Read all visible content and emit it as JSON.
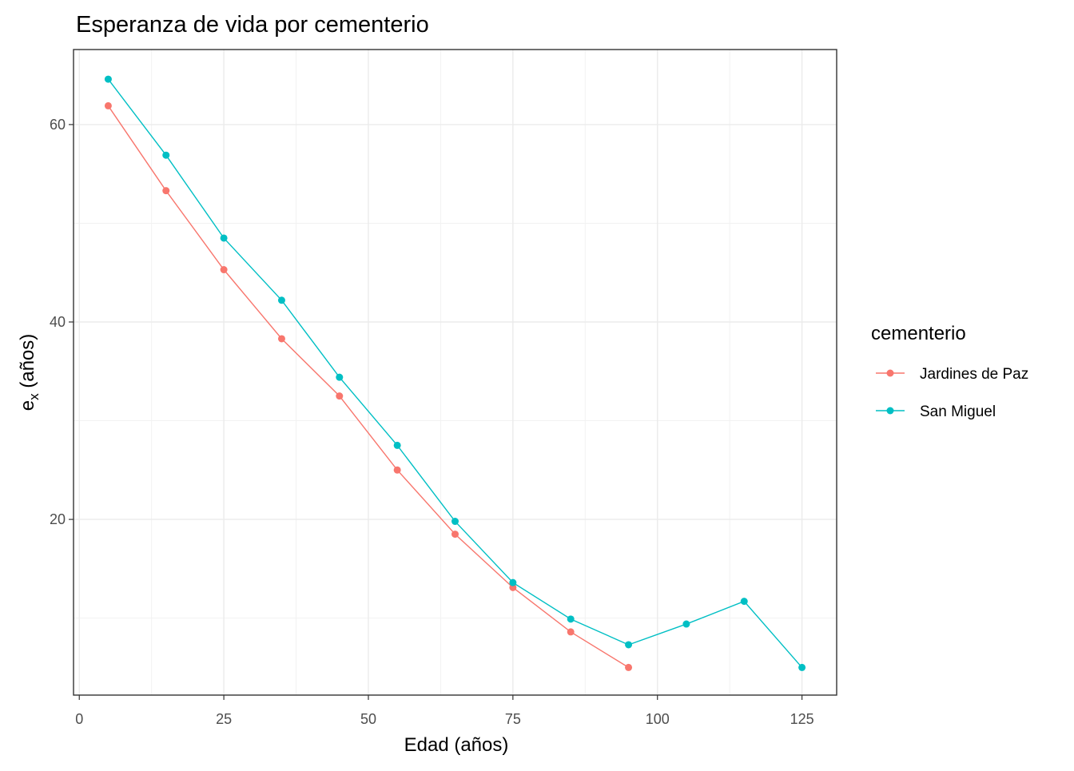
{
  "chart_data": {
    "type": "line",
    "title": "Esperanza de vida por cementerio",
    "x_label": "Edad (años)",
    "y_label": [
      "e",
      "x",
      " (años)"
    ],
    "legend_title": "cementerio",
    "legend": "right",
    "grid": true,
    "xlim": [
      -1,
      131
    ],
    "xticks": [
      0,
      25,
      50,
      75,
      100,
      125
    ],
    "xminor": [
      12.5,
      37.5,
      62.5,
      87.5,
      112.5
    ],
    "ylim": [
      2.2,
      67.6
    ],
    "yticks": [
      20,
      40,
      60
    ],
    "yminor": [
      10,
      30,
      50
    ],
    "series": [
      {
        "name": "Jardines de Paz",
        "color": "#F8766D",
        "x": [
          5,
          15,
          25,
          35,
          45,
          55,
          65,
          75,
          85,
          95
        ],
        "values": [
          61.9,
          53.3,
          45.3,
          38.3,
          32.5,
          25.0,
          18.5,
          13.1,
          8.6,
          5.0
        ]
      },
      {
        "name": "San Miguel",
        "color": "#00BFC4",
        "x": [
          5,
          15,
          25,
          35,
          45,
          55,
          65,
          75,
          85,
          95,
          105,
          115,
          125
        ],
        "values": [
          64.6,
          56.9,
          48.5,
          42.2,
          34.4,
          27.5,
          19.8,
          13.6,
          9.9,
          7.3,
          9.4,
          11.7,
          5.0
        ]
      }
    ]
  }
}
